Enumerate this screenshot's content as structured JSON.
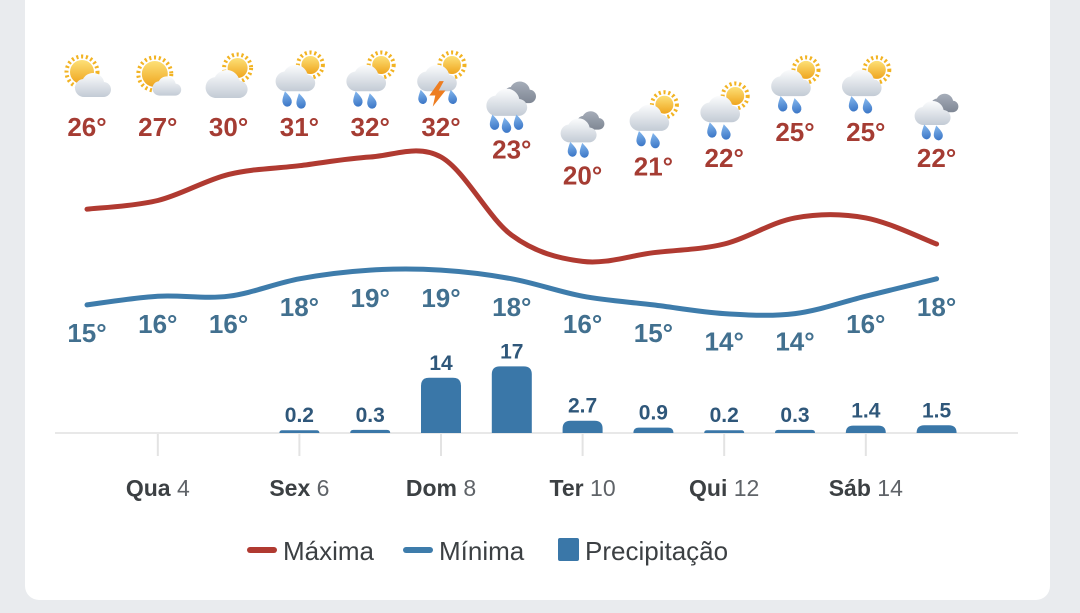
{
  "page": {
    "background_color": "#e9ebee",
    "card_background_color": "#ffffff"
  },
  "chart_data": {
    "type": "combo-line-bar",
    "description": "13-day weather forecast: daily max/min temperature lines with precipitation bars and weather icons",
    "grid": false,
    "legend_position": "bottom",
    "temp_axis_range": [
      14,
      32
    ],
    "x_ticks": [
      {
        "day": "Qua",
        "date": "4",
        "day_index": 1
      },
      {
        "day": "Sex",
        "date": "6",
        "day_index": 3
      },
      {
        "day": "Dom",
        "date": "8",
        "day_index": 5
      },
      {
        "day": "Ter",
        "date": "10",
        "day_index": 7
      },
      {
        "day": "Qui",
        "date": "12",
        "day_index": 9
      },
      {
        "day": "Sáb",
        "date": "14",
        "day_index": 11
      }
    ],
    "series": [
      {
        "name": "Máxima",
        "type": "line",
        "unit": "°",
        "color": "#b03a31",
        "label_color": "#a53c33",
        "values": [
          26,
          27,
          30,
          31,
          32,
          32,
          23,
          20,
          21,
          22,
          25,
          25,
          22
        ]
      },
      {
        "name": "Mínima",
        "type": "line",
        "unit": "°",
        "color": "#3e7cab",
        "label_color": "#42708f",
        "values": [
          15,
          16,
          16,
          18,
          19,
          19,
          18,
          16,
          15,
          14,
          14,
          16,
          18
        ]
      },
      {
        "name": "Precipitação",
        "type": "bar",
        "color": "#3a77a8",
        "label_color": "#2f577a",
        "values": [
          null,
          null,
          null,
          0.2,
          0.3,
          14,
          17,
          2.7,
          0.9,
          0.2,
          0.3,
          1.4,
          1.5
        ]
      }
    ],
    "weather_icons": [
      "sun-cloud",
      "sun-small-cloud",
      "cloud-sun",
      "rain-sun",
      "rain-sun",
      "storm-sun",
      "heavy-rain",
      "rain",
      "rain-sun",
      "rain-sun",
      "rain-sun",
      "rain-sun",
      "rain"
    ],
    "legend": [
      {
        "label": "Máxima",
        "swatch": "line",
        "color": "#b03a31"
      },
      {
        "label": "Mínima",
        "swatch": "line",
        "color": "#3e7cab"
      },
      {
        "label": "Precipitação",
        "swatch": "square",
        "color": "#3a77a8"
      }
    ],
    "axis_colors": {
      "axis_line": "#e8e8e8",
      "tick": "#e3e3e3",
      "tick_label_day": "#3c4043",
      "tick_label_date": "#5f6368",
      "legend_text": "#3c4043"
    }
  }
}
